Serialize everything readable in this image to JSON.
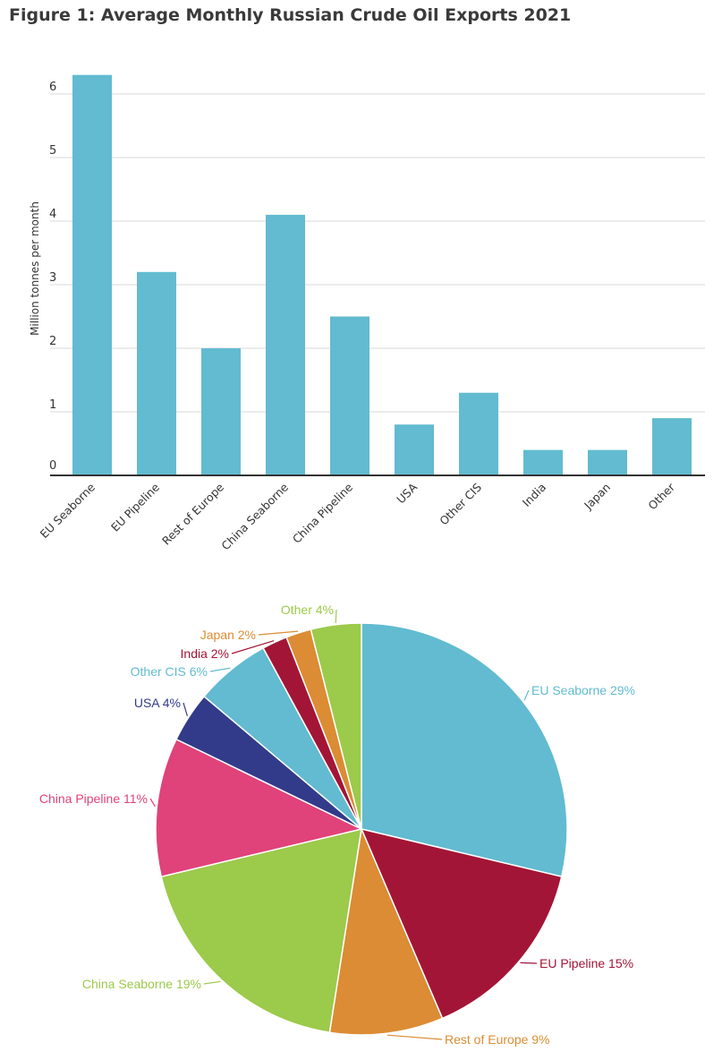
{
  "figure_title": "Figure 1: Average Monthly Russian Crude Oil Exports 2021",
  "colors": {
    "bar": "#62bbd0",
    "grid": "#d9d9d9",
    "axis": "#333333",
    "text": "#333333"
  },
  "chart_data": [
    {
      "type": "bar",
      "title": "",
      "xlabel": "",
      "ylabel": "Million tonnes per month",
      "ylim": [
        0,
        6.3
      ],
      "yticks": [
        "0",
        "1",
        "2",
        "3",
        "4",
        "5",
        "6"
      ],
      "grid": true,
      "categories": [
        "EU Seaborne",
        "EU Pipeline",
        "Rest of Europe",
        "China Seaborne",
        "China Pipeline",
        "USA",
        "Other CIS",
        "India",
        "Japan",
        "Other"
      ],
      "values": [
        6.3,
        3.2,
        2.0,
        4.1,
        2.5,
        0.8,
        1.3,
        0.4,
        0.4,
        0.9
      ]
    },
    {
      "type": "pie",
      "slices": [
        {
          "name": "EU Seaborne",
          "label": "EU Seaborne 29%",
          "value": 29,
          "color": "#62bbd0"
        },
        {
          "name": "EU Pipeline",
          "label": "EU Pipeline 15%",
          "value": 15,
          "color": "#a31536"
        },
        {
          "name": "Rest of Europe",
          "label": "Rest of Europe 9%",
          "value": 9,
          "color": "#db8c34"
        },
        {
          "name": "China Seaborne",
          "label": "China Seaborne 19%",
          "value": 19,
          "color": "#9cca4b"
        },
        {
          "name": "China Pipeline",
          "label": "China Pipeline 11%",
          "value": 11,
          "color": "#e0427a"
        },
        {
          "name": "USA",
          "label": "USA 4%",
          "value": 4,
          "color": "#323b8a"
        },
        {
          "name": "Other CIS",
          "label": "Other CIS 6%",
          "value": 6,
          "color": "#62bbd0"
        },
        {
          "name": "India",
          "label": "India 2%",
          "value": 2,
          "color": "#a31536"
        },
        {
          "name": "Japan",
          "label": "Japan 2%",
          "value": 2,
          "color": "#db8c34"
        },
        {
          "name": "Other",
          "label": "Other 4%",
          "value": 4,
          "color": "#9cca4b"
        }
      ]
    }
  ]
}
